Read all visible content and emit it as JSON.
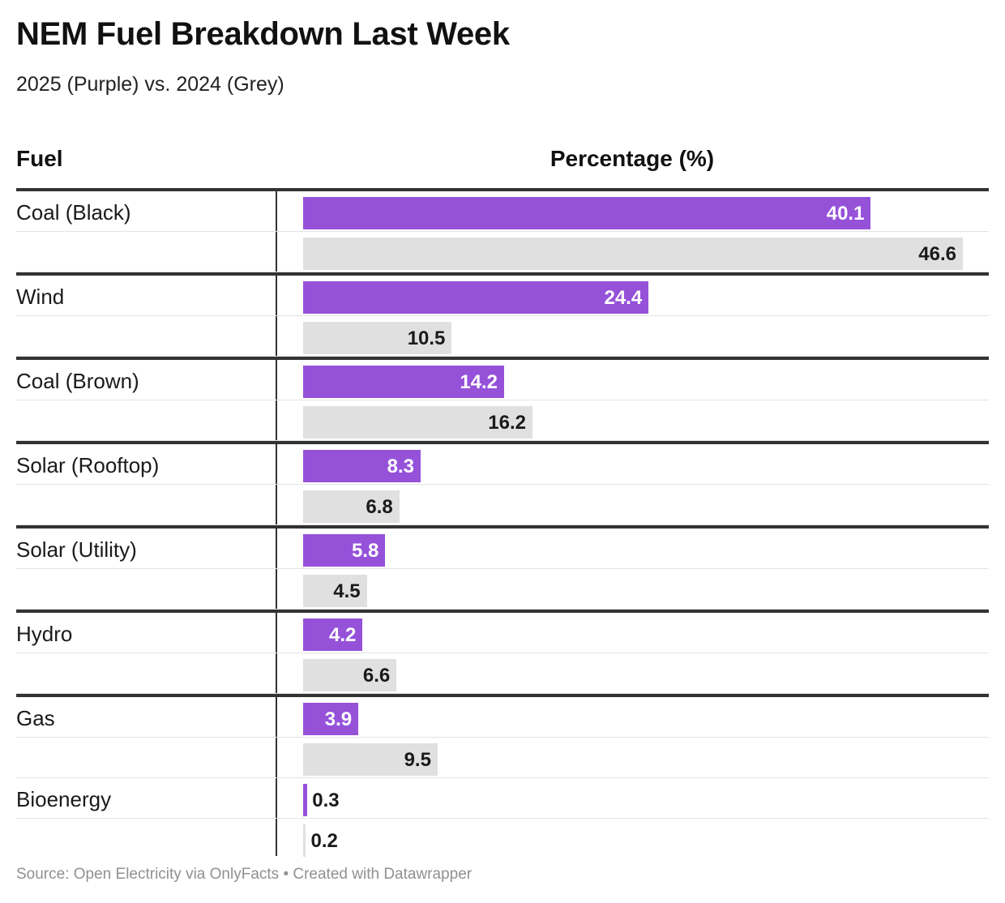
{
  "title": "NEM Fuel Breakdown Last Week",
  "subtitle": "2025 (Purple) vs. 2024 (Grey)",
  "columns": {
    "fuel": "Fuel",
    "percentage": "Percentage (%)"
  },
  "source": "Source: Open Electricity via OnlyFacts • Created with Datawrapper",
  "colors": {
    "y2025": "#9552d9",
    "y2024": "#e0e0e0",
    "rule": "#333333"
  },
  "chart_data": {
    "type": "bar",
    "orientation": "horizontal",
    "categories": [
      "Coal (Black)",
      "Wind",
      "Coal (Brown)",
      "Solar (Rooftop)",
      "Solar (Utility)",
      "Hydro",
      "Gas",
      "Bioenergy"
    ],
    "series": [
      {
        "values": [
          40.1,
          24.4,
          14.2,
          8.3,
          5.8,
          4.2,
          3.9,
          0.3
        ]
      },
      {
        "values": [
          46.6,
          10.5,
          16.2,
          6.8,
          4.5,
          6.6,
          9.5,
          0.2
        ]
      }
    ],
    "xlim": [
      0,
      50
    ]
  }
}
